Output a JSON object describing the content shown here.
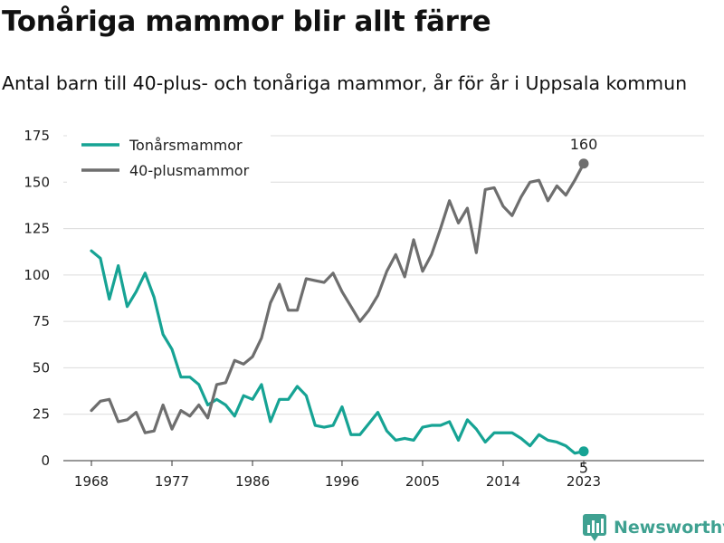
{
  "header": {
    "title": "Tonåriga mammor blir allt färre",
    "subtitle": "Antal barn till 40-plus- och tonåriga mammor, år för år i Uppsala kommun"
  },
  "branding": {
    "name": "Newsworthy",
    "icon": "bar-chart-logo-icon",
    "color": "#3fa191"
  },
  "chart_data": {
    "type": "line",
    "title": "Tonåriga mammor blir allt färre",
    "subtitle": "Antal barn till 40-plus- och tonåriga mammor, år för år i Uppsala kommun",
    "xlabel": "",
    "ylabel": "",
    "x_ticks": [
      1968,
      1977,
      1986,
      1996,
      2005,
      2014,
      2023
    ],
    "y_ticks": [
      0,
      25,
      50,
      75,
      100,
      125,
      150,
      175
    ],
    "xlim": [
      1968,
      2023
    ],
    "ylim": [
      0,
      175
    ],
    "grid": true,
    "legend_position": "top-left",
    "x": [
      1968,
      1969,
      1970,
      1971,
      1972,
      1973,
      1974,
      1975,
      1976,
      1977,
      1978,
      1979,
      1980,
      1981,
      1982,
      1983,
      1984,
      1985,
      1986,
      1987,
      1988,
      1989,
      1990,
      1991,
      1992,
      1993,
      1994,
      1995,
      1996,
      1997,
      1998,
      1999,
      2000,
      2001,
      2002,
      2003,
      2004,
      2005,
      2006,
      2007,
      2008,
      2009,
      2010,
      2011,
      2012,
      2013,
      2014,
      2015,
      2016,
      2017,
      2018,
      2019,
      2020,
      2021,
      2022,
      2023
    ],
    "series": [
      {
        "name": "Tonårsmammor",
        "color": "#16a394",
        "values": [
          113,
          109,
          87,
          105,
          83,
          91,
          101,
          88,
          68,
          60,
          45,
          45,
          41,
          30,
          33,
          30,
          24,
          35,
          33,
          41,
          21,
          33,
          33,
          40,
          35,
          19,
          18,
          19,
          29,
          14,
          14,
          20,
          26,
          16,
          11,
          12,
          11,
          18,
          19,
          19,
          21,
          11,
          22,
          17,
          10,
          15,
          15,
          15,
          12,
          8,
          14,
          11,
          10,
          8,
          4,
          5
        ],
        "end_label": "5"
      },
      {
        "name": "40-plusmammor",
        "color": "#6e6e6e",
        "values": [
          27,
          32,
          33,
          21,
          22,
          26,
          15,
          16,
          30,
          17,
          27,
          24,
          30,
          23,
          41,
          42,
          54,
          52,
          56,
          66,
          85,
          95,
          81,
          81,
          98,
          97,
          96,
          101,
          91,
          83,
          75,
          81,
          89,
          102,
          111,
          99,
          119,
          102,
          111,
          125,
          140,
          128,
          136,
          112,
          146,
          147,
          137,
          132,
          142,
          150,
          151,
          140,
          148,
          143,
          151,
          160
        ],
        "end_label": "160"
      }
    ]
  }
}
